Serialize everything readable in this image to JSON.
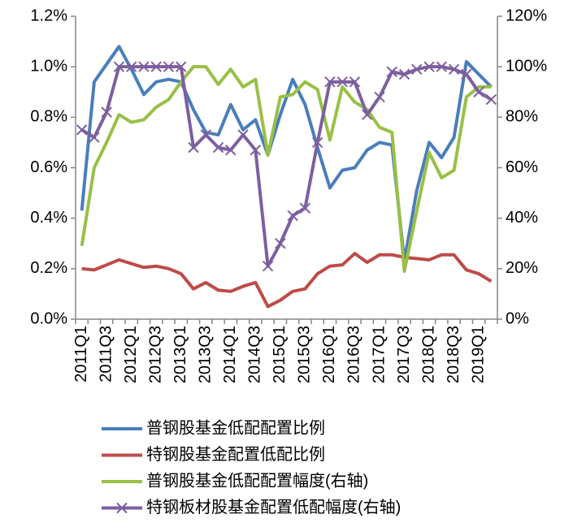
{
  "chart_data": {
    "type": "line",
    "categories": [
      "2011Q1",
      null,
      "2011Q3",
      null,
      "2012Q1",
      null,
      "2012Q3",
      null,
      "2013Q1",
      null,
      "2013Q3",
      null,
      "2014Q1",
      null,
      "2014Q3",
      null,
      "2015Q1",
      null,
      "2015Q3",
      null,
      "2016Q1",
      null,
      "2016Q3",
      null,
      "2017Q1",
      null,
      "2017Q3",
      null,
      "2018Q1",
      null,
      "2018Q3",
      null,
      "2019Q1",
      null
    ],
    "ylim": [
      0,
      1.2
    ],
    "yticks": [
      {
        "value": 0,
        "label": "0.0%"
      },
      {
        "value": 0.2,
        "label": "0.2%"
      },
      {
        "value": 0.4,
        "label": "0.4%"
      },
      {
        "value": 0.6,
        "label": "0.6%"
      },
      {
        "value": 0.8,
        "label": "0.8%"
      },
      {
        "value": 1.0,
        "label": "1.0%"
      },
      {
        "value": 1.2,
        "label": "1.2%"
      }
    ],
    "y2lim": [
      0,
      120
    ],
    "y2ticks": [
      {
        "value": 0,
        "label": "0%"
      },
      {
        "value": 20,
        "label": "20%"
      },
      {
        "value": 40,
        "label": "40%"
      },
      {
        "value": 60,
        "label": "60%"
      },
      {
        "value": 80,
        "label": "80%"
      },
      {
        "value": 100,
        "label": "100%"
      },
      {
        "value": 120,
        "label": "120%"
      }
    ],
    "grid": false,
    "legend": "bottom",
    "series": [
      {
        "name": "普钢股基金低配配置比例",
        "color": "#4a7ebb",
        "values": [
          0.43,
          0.94,
          1.01,
          1.08,
          0.99,
          0.89,
          0.94,
          0.95,
          0.94,
          0.83,
          0.74,
          0.73,
          0.85,
          0.75,
          0.79,
          0.65,
          0.81,
          0.95,
          0.85,
          0.68,
          0.52,
          0.59,
          0.6,
          0.67,
          0.7,
          0.69,
          0.23,
          0.51,
          0.7,
          0.64,
          0.72,
          1.02,
          0.97,
          0.92
        ]
      },
      {
        "name": "特钢股基金配置低配比例",
        "color": "#be4b48",
        "values": [
          0.2,
          0.195,
          0.215,
          0.235,
          0.22,
          0.205,
          0.21,
          0.2,
          0.18,
          0.12,
          0.145,
          0.115,
          0.11,
          0.13,
          0.145,
          0.05,
          0.075,
          0.11,
          0.12,
          0.18,
          0.21,
          0.215,
          0.26,
          0.225,
          0.255,
          0.255,
          0.245,
          0.24,
          0.235,
          0.255,
          0.255,
          0.195,
          0.18,
          0.15
        ]
      },
      {
        "name": "普钢股基金低配配置幅度(右轴)",
        "color": "#98c047",
        "axis": "y2",
        "values": [
          29,
          60,
          70,
          81,
          78,
          79,
          84,
          87,
          94,
          100,
          100,
          93,
          99,
          92,
          95,
          65,
          88,
          89,
          94,
          91,
          71,
          92,
          86,
          83,
          76,
          74,
          19,
          43,
          66,
          56,
          59,
          88,
          92,
          92
        ]
      },
      {
        "name": "特钢板材股基金配置低配幅度(右轴)",
        "color": "#7d5fa0",
        "axis": "y2",
        "marker": "x",
        "values": [
          75,
          72,
          82,
          100,
          100,
          100,
          100,
          100,
          100,
          68,
          73,
          68,
          67,
          73,
          67,
          21,
          30,
          41,
          44,
          70,
          94,
          94,
          94,
          81,
          88,
          98,
          97,
          99,
          100,
          100,
          99,
          97,
          90,
          87
        ]
      }
    ]
  }
}
